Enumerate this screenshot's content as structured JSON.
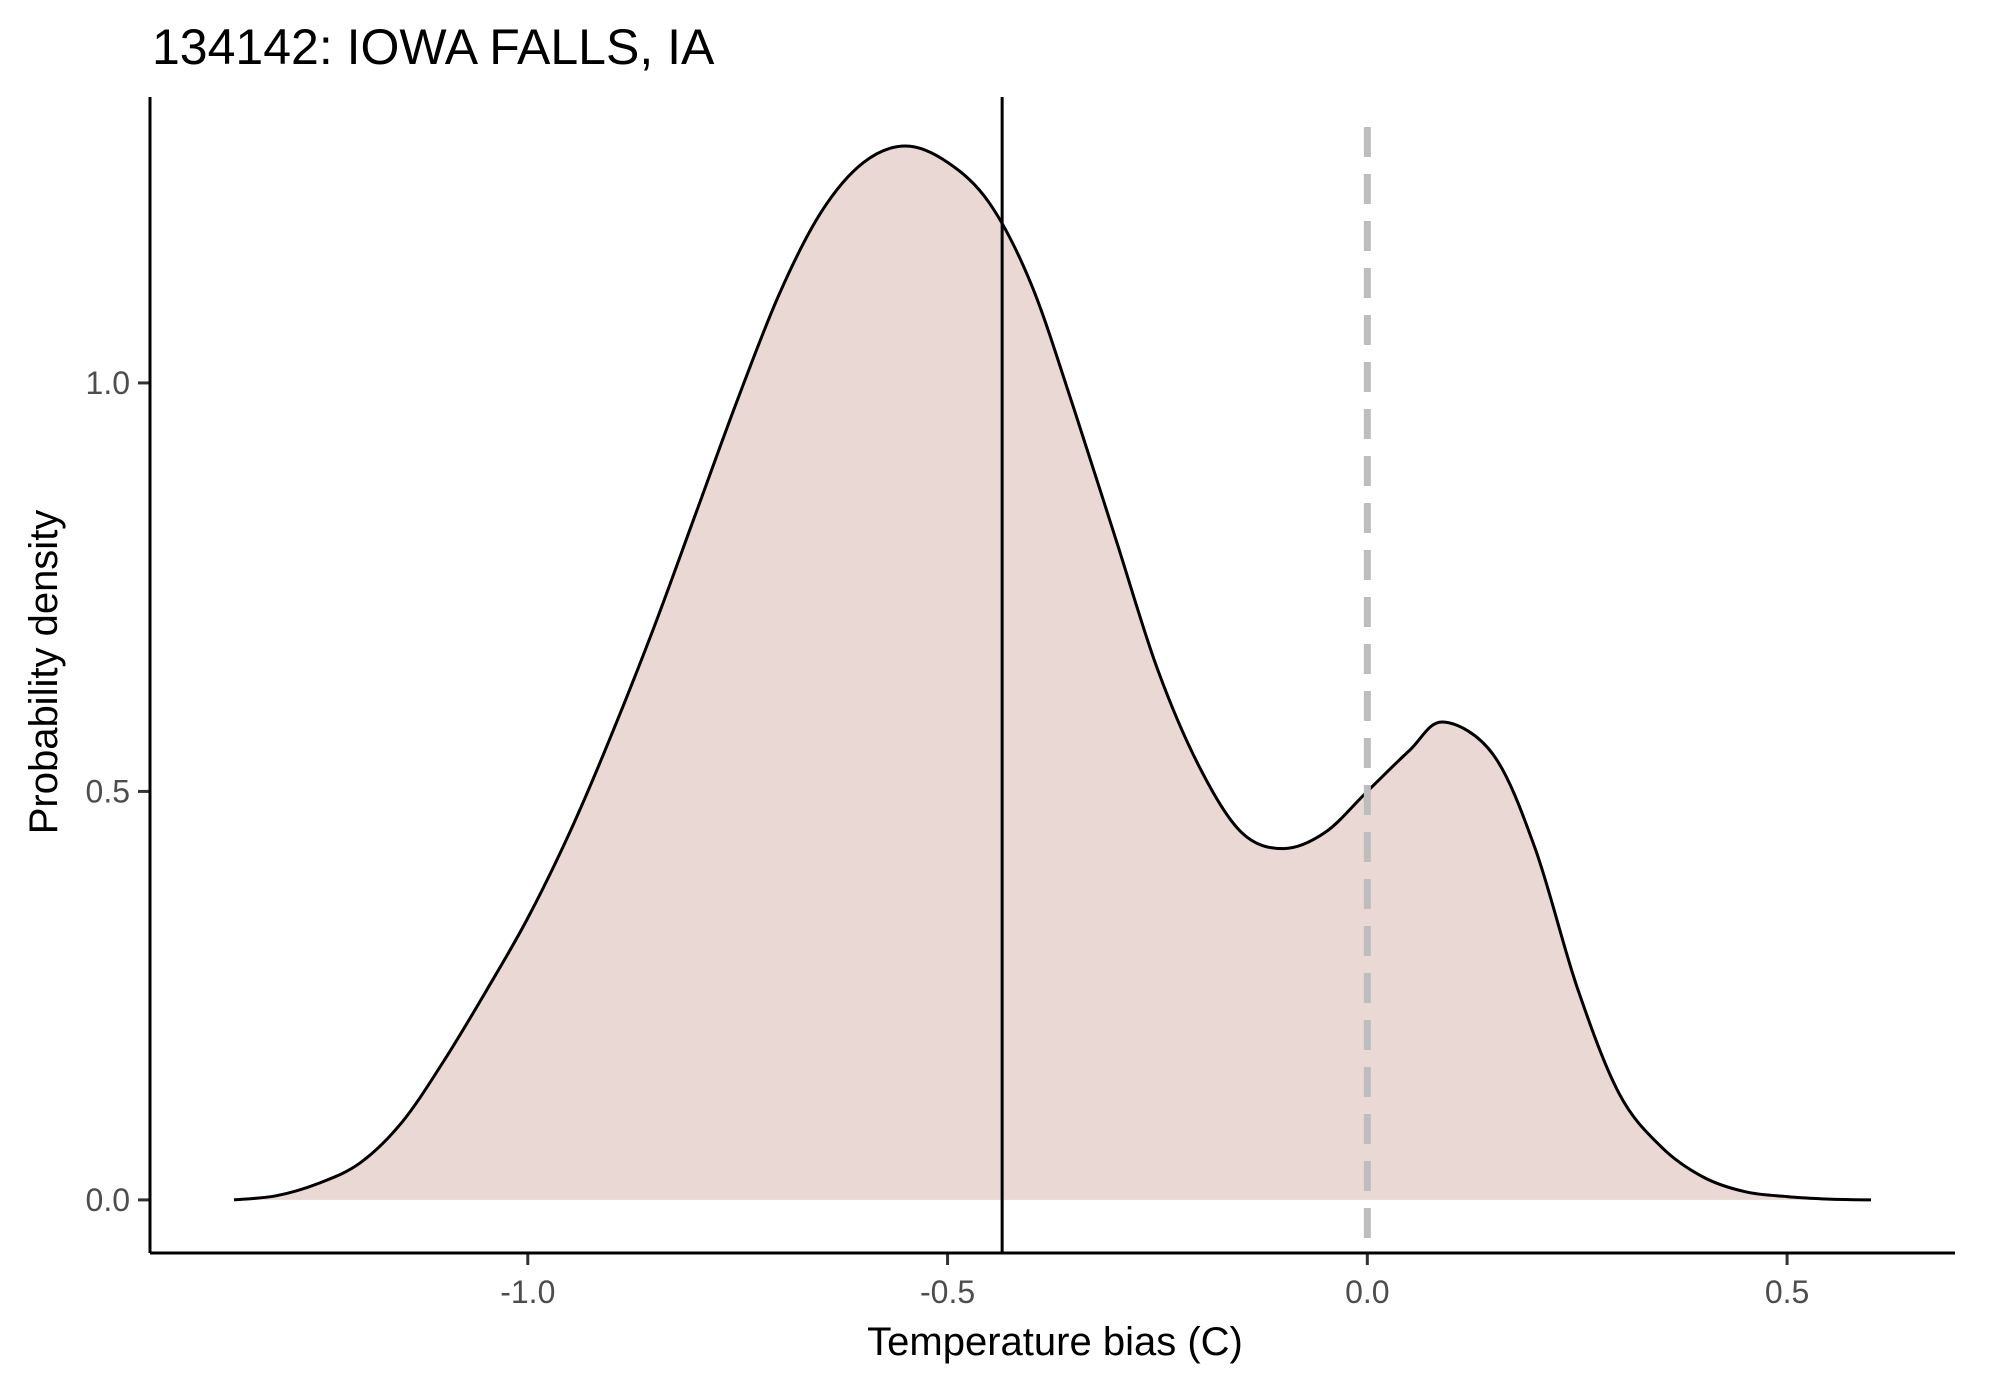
{
  "chart_data": {
    "type": "area",
    "title": "134142: IOWA FALLS, IA",
    "xlabel": "Temperature bias (C)",
    "ylabel": "Probability density",
    "xlim": [
      -1.45,
      0.7
    ],
    "ylim": [
      -0.065,
      1.35
    ],
    "x_ticks": [
      -1.0,
      -0.5,
      0.0,
      0.5
    ],
    "x_tick_labels": [
      "-1.0",
      "-0.5",
      "0.0",
      "0.5"
    ],
    "y_ticks": [
      0.0,
      0.5,
      1.0
    ],
    "y_tick_labels": [
      "0.0",
      "0.5",
      "1.0"
    ],
    "grid": false,
    "colors": {
      "fill": "#e9d8d3",
      "line": "#000000",
      "reference_line": "#bdbdbd"
    },
    "series": [
      {
        "x": [
          -1.35,
          -1.3,
          -1.25,
          -1.2,
          -1.15,
          -1.1,
          -1.05,
          -1.0,
          -0.95,
          -0.9,
          -0.85,
          -0.8,
          -0.75,
          -0.7,
          -0.65,
          -0.6,
          -0.55,
          -0.5,
          -0.45,
          -0.4,
          -0.35,
          -0.3,
          -0.25,
          -0.2,
          -0.15,
          -0.1,
          -0.05,
          0.0,
          0.05,
          0.09,
          0.15,
          0.2,
          0.25,
          0.3,
          0.35,
          0.4,
          0.45,
          0.5,
          0.55,
          0.6
        ],
        "y": [
          0.0,
          0.005,
          0.02,
          0.045,
          0.095,
          0.17,
          0.255,
          0.345,
          0.45,
          0.57,
          0.7,
          0.84,
          0.98,
          1.11,
          1.21,
          1.27,
          1.29,
          1.27,
          1.22,
          1.12,
          0.97,
          0.81,
          0.65,
          0.53,
          0.45,
          0.43,
          0.45,
          0.5,
          0.55,
          0.585,
          0.545,
          0.43,
          0.26,
          0.13,
          0.065,
          0.028,
          0.01,
          0.004,
          0.001,
          0.0
        ]
      }
    ],
    "reference_lines": [
      {
        "axis": "x",
        "value": -0.435,
        "style": "solid"
      },
      {
        "axis": "x",
        "value": 0.0,
        "style": "dashed"
      }
    ]
  }
}
